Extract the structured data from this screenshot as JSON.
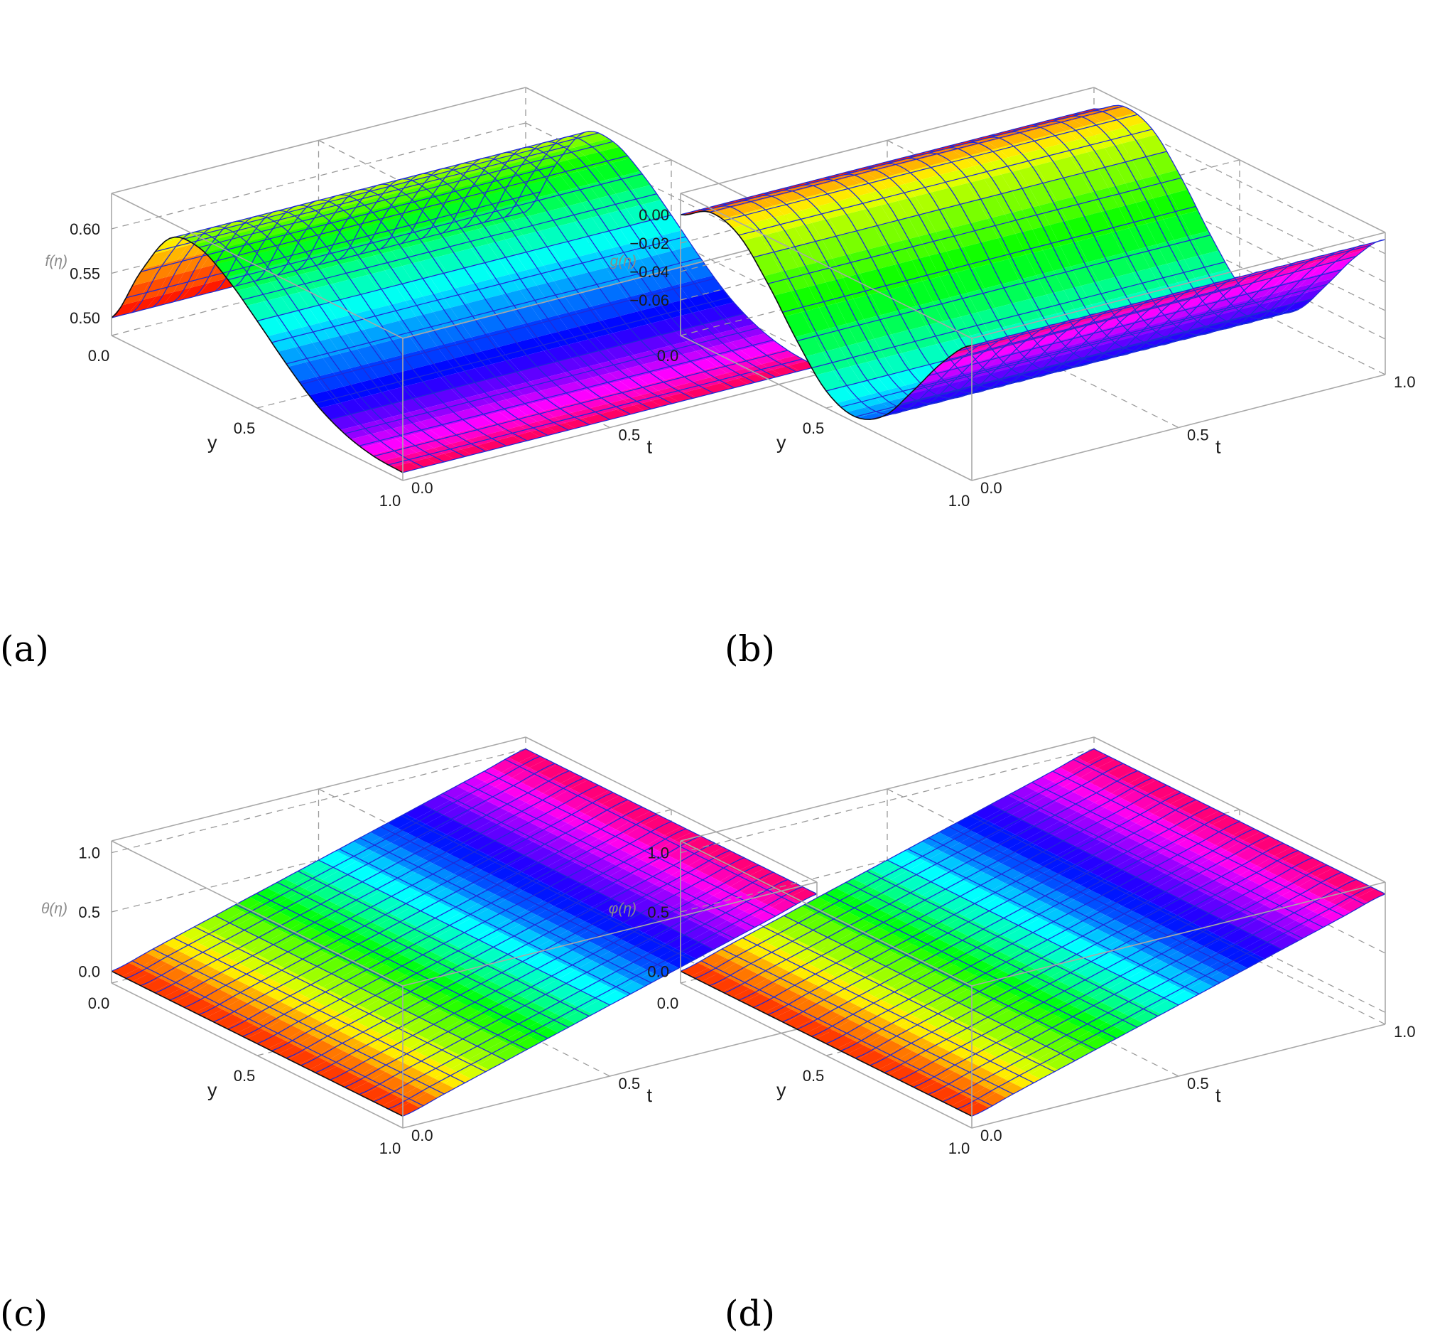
{
  "chart_data": [
    {
      "panel": "(a)",
      "type": "surface3d",
      "x_label": "y",
      "y_label": "t",
      "z_label": "f(η)",
      "xlim": [
        0,
        1
      ],
      "ylim": [
        0,
        1
      ],
      "zlim": [
        0.48,
        0.64
      ],
      "x_ticks": [
        "0.0",
        "0.5",
        "1.0"
      ],
      "y_ticks": [
        "0.0",
        "0.5",
        "1.0"
      ],
      "z_ticks": [
        {
          "v": 0.5,
          "label": "0.50"
        },
        {
          "v": 0.55,
          "label": "0.55"
        },
        {
          "v": 0.6,
          "label": "0.60"
        }
      ],
      "x": [
        0.0,
        0.1,
        0.2,
        0.3,
        0.4,
        0.5,
        0.6,
        0.7,
        0.8,
        0.9,
        1.0
      ],
      "z_by_y": [
        0.5,
        0.568,
        0.622,
        0.628,
        0.608,
        0.578,
        0.546,
        0.518,
        0.5,
        0.491,
        0.489
      ],
      "grid": true
    },
    {
      "panel": "(b)",
      "type": "surface3d",
      "x_label": "y",
      "y_label": "t",
      "z_label": "g(η)",
      "xlim": [
        0,
        1
      ],
      "ylim": [
        0,
        1
      ],
      "zlim": [
        -0.085,
        0.015
      ],
      "x_ticks": [
        "0.0",
        "0.5",
        "1.0"
      ],
      "y_ticks": [
        "0.0",
        "0.5",
        "1.0"
      ],
      "z_ticks": [
        {
          "v": 0.0,
          "label": "0.00"
        },
        {
          "v": -0.02,
          "label": "−0.02"
        },
        {
          "v": -0.04,
          "label": "−0.04"
        },
        {
          "v": -0.06,
          "label": "−0.06"
        }
      ],
      "x": [
        0.0,
        0.1,
        0.2,
        0.3,
        0.4,
        0.5,
        0.6,
        0.7,
        0.8,
        0.9,
        1.0
      ],
      "z_by_y": [
        0.0,
        0.012,
        0.006,
        -0.018,
        -0.048,
        -0.073,
        -0.081,
        -0.07,
        -0.042,
        -0.012,
        0.01
      ],
      "grid": true
    },
    {
      "panel": "(c)",
      "type": "surface3d",
      "x_label": "y",
      "y_label": "t",
      "z_label": "θ(η)",
      "xlim": [
        0,
        1
      ],
      "ylim": [
        0,
        1
      ],
      "zlim": [
        -0.1,
        1.1
      ],
      "x_ticks": [
        "0.0",
        "0.5",
        "1.0"
      ],
      "y_ticks": [
        "0.0",
        "0.5",
        "1.0"
      ],
      "z_ticks": [
        {
          "v": 0.0,
          "label": "0.0"
        },
        {
          "v": 0.5,
          "label": "0.5"
        },
        {
          "v": 1.0,
          "label": "1.0"
        }
      ],
      "x": [
        0.0,
        0.1,
        0.2,
        0.3,
        0.4,
        0.5,
        0.6,
        0.7,
        0.8,
        0.9,
        1.0
      ],
      "z_by_t": [
        0.0,
        0.1,
        0.2,
        0.3,
        0.4,
        0.5,
        0.6,
        0.7,
        0.8,
        0.9,
        1.0
      ],
      "grid": true
    },
    {
      "panel": "(d)",
      "type": "surface3d",
      "x_label": "y",
      "y_label": "t",
      "z_label": "φ(η)",
      "xlim": [
        0,
        1
      ],
      "ylim": [
        0,
        1
      ],
      "zlim": [
        -0.1,
        1.1
      ],
      "x_ticks": [
        "0.0",
        "0.5",
        "1.0"
      ],
      "y_ticks": [
        "0.0",
        "0.5",
        "1.0"
      ],
      "z_ticks": [
        {
          "v": 0.0,
          "label": "0.0"
        },
        {
          "v": 0.5,
          "label": "0.5"
        },
        {
          "v": 1.0,
          "label": "1.0"
        }
      ],
      "x": [
        0.0,
        0.1,
        0.2,
        0.3,
        0.4,
        0.5,
        0.6,
        0.7,
        0.8,
        0.9,
        1.0
      ],
      "z_by_t": [
        0.0,
        0.1,
        0.2,
        0.3,
        0.4,
        0.5,
        0.6,
        0.7,
        0.8,
        0.9,
        1.0
      ],
      "grid": true
    }
  ],
  "colors": {
    "mesh": "#1f2ad6",
    "box": "#a8a8a8",
    "grid": "#9a9a9a"
  }
}
